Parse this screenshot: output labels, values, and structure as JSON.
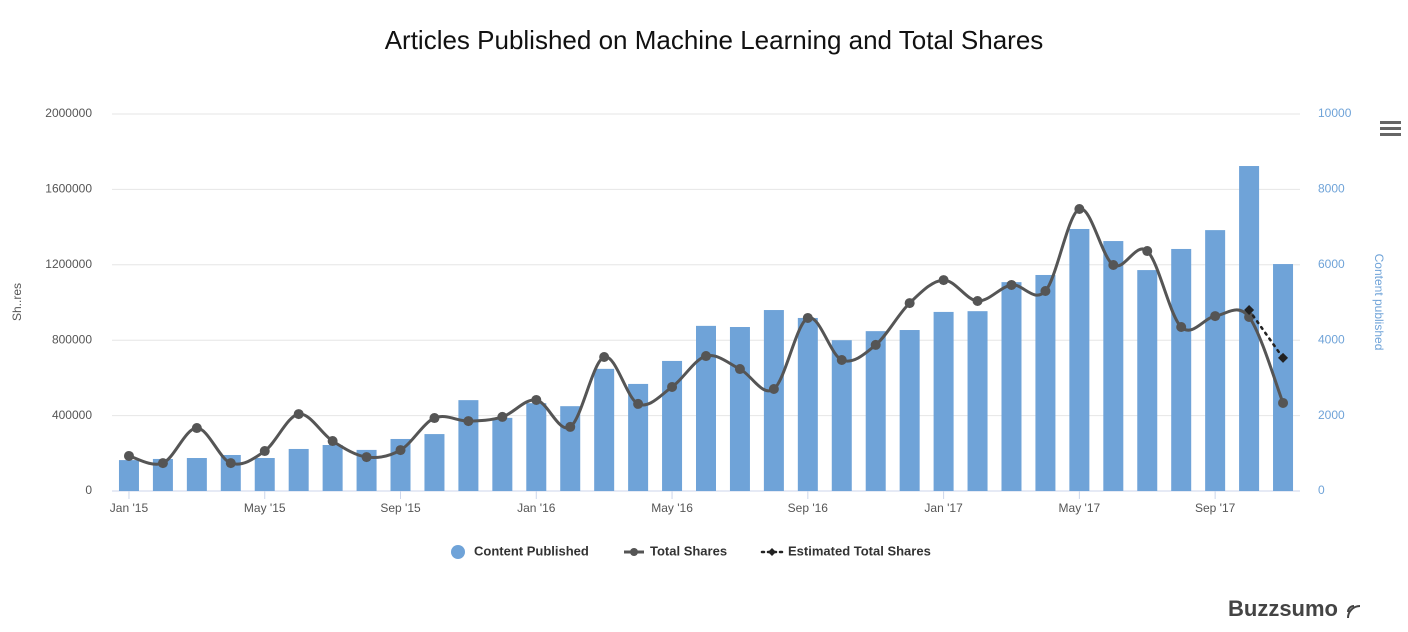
{
  "chart_data": {
    "type": "combo",
    "title": "Articles Published on Machine Learning and Total Shares",
    "ylabel": "Sh..res",
    "y2label": "Content published",
    "brand": "Buzzsumo",
    "categories": [
      "Jan '15",
      null,
      null,
      null,
      "May '15",
      null,
      null,
      null,
      "Sep '15",
      null,
      null,
      null,
      "Jan '16",
      null,
      null,
      null,
      "May '16",
      null,
      null,
      null,
      "Sep '16",
      null,
      null,
      null,
      "Jan '17",
      null,
      null,
      null,
      "May '17",
      null,
      null,
      null,
      "Sep '17",
      null,
      null
    ],
    "ylim": [
      0,
      2000000
    ],
    "yticks": [
      0,
      400000,
      800000,
      1200000,
      1600000,
      2000000
    ],
    "y2lim": [
      0,
      10000
    ],
    "y2ticks": [
      0,
      2000,
      4000,
      6000,
      8000,
      10000
    ],
    "grid": true,
    "legend": "bottom",
    "series": [
      {
        "name": "Content Published",
        "type": "bar",
        "axis": "y2",
        "color": "#6fa3d8",
        "values": [
          820,
          850,
          875,
          955,
          875,
          1115,
          1220,
          1090,
          1380,
          1510,
          2410,
          1940,
          2330,
          2250,
          3240,
          2840,
          3450,
          4380,
          4350,
          4800,
          4590,
          4000,
          4240,
          4270,
          4750,
          4770,
          5540,
          5730,
          6950,
          6630,
          5860,
          6420,
          6920,
          8620,
          6020
        ]
      },
      {
        "name": "Total Shares",
        "type": "line",
        "color": "#555555",
        "values": [
          186000,
          148000,
          334000,
          148000,
          212000,
          408000,
          265000,
          180000,
          217000,
          387000,
          371000,
          393000,
          483000,
          340000,
          711000,
          462000,
          552000,
          716000,
          647000,
          541000,
          918000,
          695000,
          775000,
          997000,
          1119000,
          1008000,
          1093000,
          1061000,
          1496000,
          1199000,
          1273000,
          870000,
          928000,
          923000,
          467000
        ]
      },
      {
        "name": "Estimated Total Shares",
        "type": "dotted",
        "color": "#222222",
        "values": [
          null,
          null,
          null,
          null,
          null,
          null,
          null,
          null,
          null,
          null,
          null,
          null,
          null,
          null,
          null,
          null,
          null,
          null,
          null,
          null,
          null,
          null,
          null,
          null,
          null,
          null,
          null,
          null,
          null,
          null,
          null,
          null,
          null,
          960000,
          706000
        ]
      }
    ]
  }
}
